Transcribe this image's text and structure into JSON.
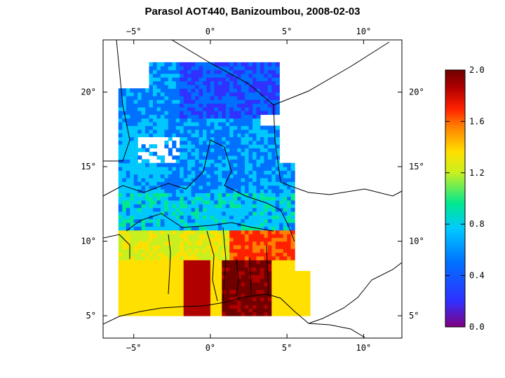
{
  "title": "Parasol AOT440, Banizoumbou, 2008-02-03",
  "map": {
    "lon_range": [
      -7.0,
      12.5
    ],
    "lat_range": [
      3.5,
      23.5
    ],
    "lon_ticks": [
      {
        "value": -5,
        "label": "−5°"
      },
      {
        "value": 0,
        "label": "0°"
      },
      {
        "value": 5,
        "label": "5°"
      },
      {
        "value": 10,
        "label": "10°"
      }
    ],
    "lat_ticks": [
      {
        "value": 5,
        "label": "5°"
      },
      {
        "value": 10,
        "label": "10°"
      },
      {
        "value": 15,
        "label": "15°"
      },
      {
        "value": 20,
        "label": "20°"
      }
    ],
    "swath_lon_range": [
      -6.0,
      6.5
    ],
    "swath_lat_range": [
      5.0,
      22.0
    ]
  },
  "colorbar": {
    "range": [
      0.0,
      2.0
    ],
    "ticks": [
      "0.0",
      "0.4",
      "0.8",
      "1.2",
      "1.6",
      "2.0"
    ],
    "tick_values": [
      0.0,
      0.4,
      0.8,
      1.2,
      1.6,
      2.0
    ],
    "colors": [
      "#800080",
      "#3030ff",
      "#0070ff",
      "#00c8ff",
      "#00e890",
      "#c8f020",
      "#ffe000",
      "#ff8000",
      "#ff2000",
      "#b00000",
      "#700000"
    ]
  }
}
